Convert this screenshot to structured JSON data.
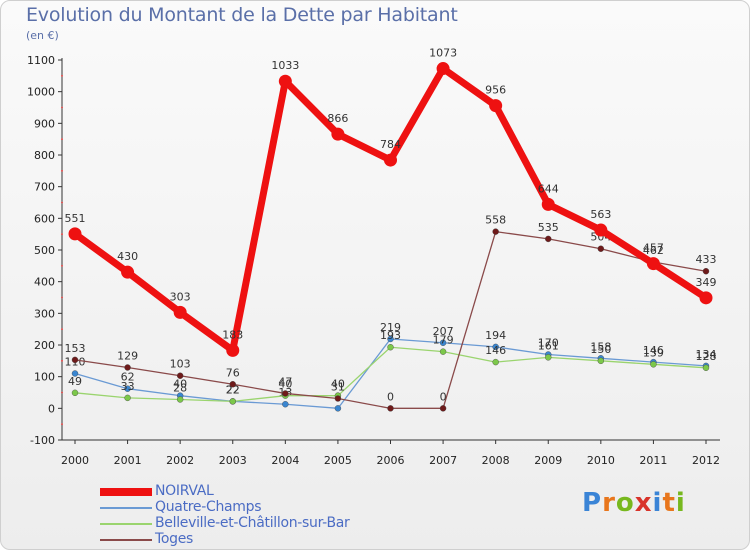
{
  "title": "Evolution du Montant de la Dette par Habitant",
  "subtitle": "(en €)",
  "brand": {
    "text": "Proxiti",
    "letter_colors": [
      "#3a84d6",
      "#e8761c",
      "#77b81e",
      "#d8332a",
      "#3a84d6",
      "#e8761c",
      "#77b81e"
    ]
  },
  "chart_data": {
    "type": "line",
    "title": "Evolution du Montant de la Dette par Habitant",
    "ylabel": "(en €)",
    "xlabel": "",
    "categories": [
      "2000",
      "2001",
      "2002",
      "2003",
      "2004",
      "2005",
      "2006",
      "2007",
      "2008",
      "2009",
      "2010",
      "2011",
      "2012"
    ],
    "ylim": [
      -100,
      1100
    ],
    "yticks": [
      -100,
      0,
      100,
      200,
      300,
      400,
      500,
      600,
      700,
      800,
      900,
      1000,
      1100
    ],
    "grid": false,
    "legend_position": "bottom-left",
    "series": [
      {
        "name": "NOIRVAL",
        "color": "#ee1111",
        "marker_color": "#ee1111",
        "width": "thick",
        "values": [
          551,
          430,
          303,
          183,
          1033,
          866,
          784,
          1073,
          956,
          644,
          563,
          457,
          349
        ],
        "labels": [
          "551",
          "430",
          "303",
          "183",
          "1033",
          "866",
          "784",
          "1073",
          "956",
          "644",
          "563",
          "457",
          "349"
        ]
      },
      {
        "name": "Quatre-Champs",
        "color": "#6a9ad4",
        "marker_color": "#3a86d0",
        "width": "thin",
        "values": [
          110,
          62,
          40,
          22,
          13,
          0,
          219,
          207,
          194,
          170,
          158,
          146,
          134
        ],
        "labels": [
          "110",
          "62",
          "40",
          "22",
          "13",
          "0",
          "219",
          "207",
          "194",
          "170",
          "158",
          "146",
          "134"
        ]
      },
      {
        "name": "Belleville-et-Châtillon-sur-Bar",
        "color": "#9ad46e",
        "marker_color": "#7cc84a",
        "width": "thin",
        "values": [
          49,
          33,
          28,
          22,
          40,
          40,
          193,
          179,
          146,
          161,
          150,
          139,
          128
        ],
        "labels": [
          "49",
          "33",
          "28",
          "22",
          "40",
          "40",
          "193",
          "179",
          "146",
          "161",
          "150",
          "139",
          "128"
        ]
      },
      {
        "name": "Toges",
        "color": "#8a4a4a",
        "marker_color": "#6e1a1a",
        "width": "thin",
        "values": [
          153,
          129,
          103,
          76,
          47,
          31,
          0,
          0,
          558,
          535,
          504,
          462,
          433
        ],
        "labels": [
          "153",
          "129",
          "103",
          "76",
          "47",
          "31",
          "0",
          "0",
          "558",
          "535",
          "504",
          "462",
          "433"
        ]
      }
    ]
  }
}
